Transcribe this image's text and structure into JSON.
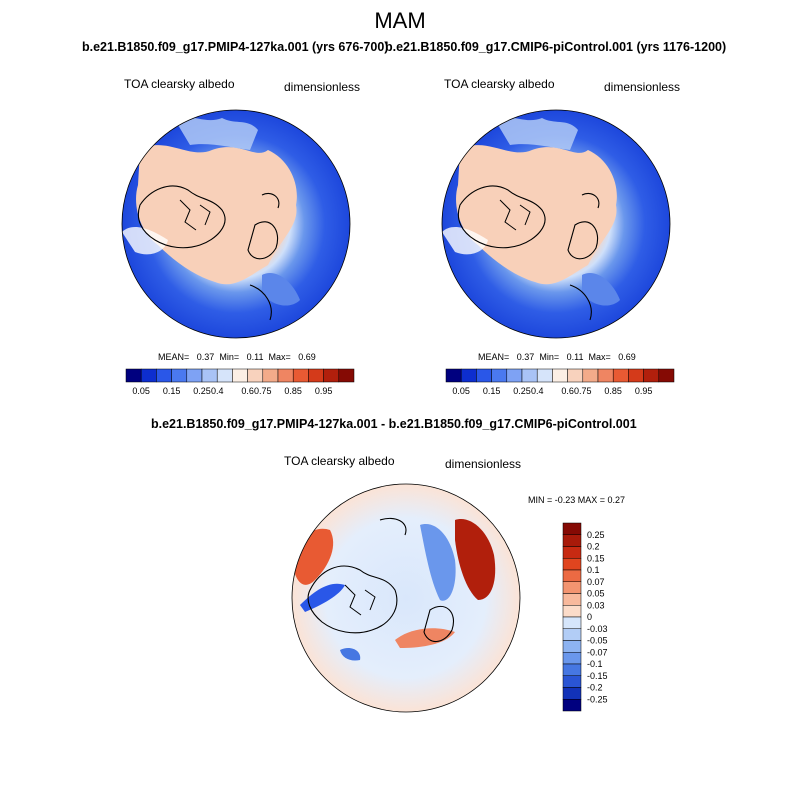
{
  "figure": {
    "season": "MAM"
  },
  "panel_top_left": {
    "title": "b.e21.B1850.f09_g17.PMIP4-127ka.001 (yrs 676-700)",
    "variable": "TOA clearsky albedo",
    "units": "dimensionless",
    "stats": {
      "mean_label": "MEAN=",
      "mean": "0.37",
      "min_label": "Min=",
      "min": "0.11",
      "max_label": "Max=",
      "max": "0.69"
    }
  },
  "panel_top_right": {
    "title": "b.e21.B1850.f09_g17.CMIP6-piControl.001 (yrs 1176-1200)",
    "variable": "TOA clearsky albedo",
    "units": "dimensionless",
    "stats": {
      "mean_label": "MEAN=",
      "mean": "0.37",
      "min_label": "Min=",
      "min": "0.11",
      "max_label": "Max=",
      "max": "0.69"
    }
  },
  "panel_bottom": {
    "title": "b.e21.B1850.f09_g17.PMIP4-127ka.001 - b.e21.B1850.f09_g17.CMIP6-piControl.001",
    "variable": "TOA clearsky albedo",
    "units": "dimensionless",
    "stats_text": "MIN =  -0.23 MAX =   0.27"
  },
  "colorbar_horizontal": {
    "tick_labels": [
      "0.05",
      "0.15",
      "0.25",
      "0.4",
      "0.6",
      "0.75",
      "0.85",
      "0.95"
    ],
    "colors": [
      "#00007f",
      "#0d2ecf",
      "#2a57e8",
      "#4a79f0",
      "#7ea2f4",
      "#a9c3f6",
      "#d6e4fa",
      "#fcefe5",
      "#f8d2bd",
      "#f3ab8a",
      "#ef8562",
      "#e85a33",
      "#d43a1a",
      "#b11f0c",
      "#850a04"
    ]
  },
  "colorbar_vertical": {
    "tick_labels": [
      "0.25",
      "0.2",
      "0.15",
      "0.1",
      "0.07",
      "0.05",
      "0.03",
      "0",
      "-0.03",
      "-0.05",
      "-0.07",
      "-0.1",
      "-0.15",
      "-0.2",
      "-0.25"
    ],
    "colors_top_to_bottom": [
      "#850a04",
      "#a81a0a",
      "#c72a12",
      "#e0451f",
      "#ec6a43",
      "#f39470",
      "#f8b99c",
      "#fcdcc9",
      "#d6e6fb",
      "#b2cdf6",
      "#8db3f1",
      "#6a97ec",
      "#4677e2",
      "#2a55d4",
      "#1232b8",
      "#00007f"
    ]
  },
  "chart_data": [
    {
      "type": "heatmap",
      "title": "b.e21.B1850.f09_g17.PMIP4-127ka.001 (yrs 676-700)",
      "projection": "north polar stereographic",
      "variable": "TOA clearsky albedo",
      "units": "dimensionless",
      "mean": 0.37,
      "min": 0.11,
      "max": 0.69,
      "levels": [
        0.05,
        0.15,
        0.25,
        0.4,
        0.6,
        0.75,
        0.85,
        0.95
      ]
    },
    {
      "type": "heatmap",
      "title": "b.e21.B1850.f09_g17.CMIP6-piControl.001 (yrs 1176-1200)",
      "projection": "north polar stereographic",
      "variable": "TOA clearsky albedo",
      "units": "dimensionless",
      "mean": 0.37,
      "min": 0.11,
      "max": 0.69,
      "levels": [
        0.05,
        0.15,
        0.25,
        0.4,
        0.6,
        0.75,
        0.85,
        0.95
      ]
    },
    {
      "type": "heatmap",
      "title": "b.e21.B1850.f09_g17.PMIP4-127ka.001 - b.e21.B1850.f09_g17.CMIP6-piControl.001",
      "projection": "north polar stereographic",
      "variable": "TOA clearsky albedo",
      "units": "dimensionless",
      "min": -0.23,
      "max": 0.27,
      "levels": [
        -0.25,
        -0.2,
        -0.15,
        -0.1,
        -0.07,
        -0.05,
        -0.03,
        0,
        0.03,
        0.05,
        0.07,
        0.1,
        0.15,
        0.2,
        0.25
      ]
    }
  ]
}
